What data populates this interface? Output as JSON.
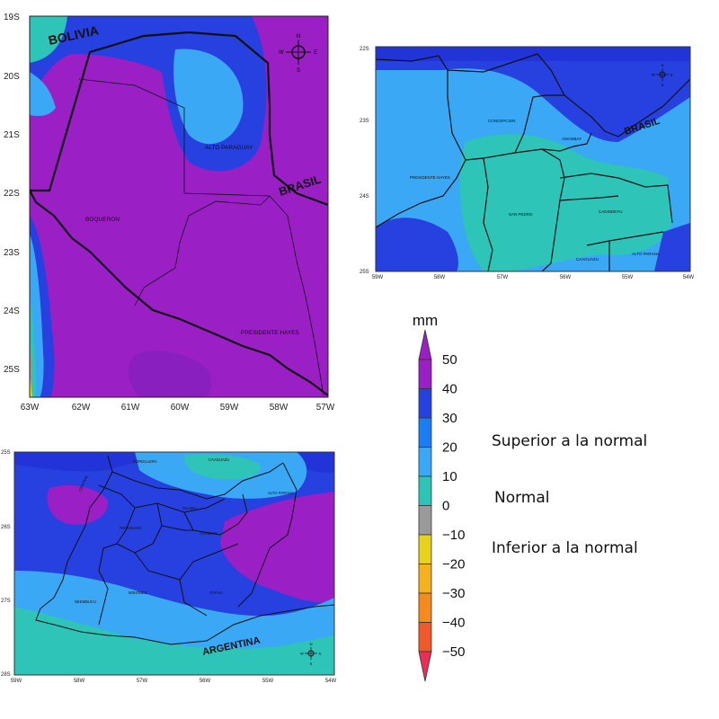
{
  "maps": {
    "west": {
      "lat_labels": [
        "19S",
        "20S",
        "21S",
        "22S",
        "23S",
        "24S",
        "25S"
      ],
      "lon_labels": [
        "63W",
        "62W",
        "61W",
        "60W",
        "59W",
        "58W",
        "57W"
      ],
      "countries": [
        "BOLIVIA",
        "BRASIL"
      ],
      "departments": [
        "ALTO PARAGUAY",
        "BOQUERON",
        "PRESIDENTE HAYES"
      ]
    },
    "north": {
      "lat_labels": [
        "22S",
        "23S",
        "24S",
        "25S"
      ],
      "lon_labels": [
        "59W",
        "58W",
        "57W",
        "56W",
        "55W",
        "54W"
      ],
      "countries": [
        "BRASIL"
      ],
      "departments": [
        "CONCEPCION",
        "AMAMBAY",
        "PRESIDENTE HAYES",
        "SAN PEDRO",
        "CANINDEYU",
        "CAAGUAZU",
        "ALTO PARANA"
      ]
    },
    "south": {
      "lat_labels": [
        "25S",
        "26S",
        "27S",
        "28S"
      ],
      "lon_labels": [
        "59W",
        "58W",
        "57W",
        "56W",
        "55W",
        "54W"
      ],
      "countries": [
        "ARGENTINA"
      ],
      "departments": [
        "CORDILLERA",
        "CAAGUAZU",
        "CENTRAL",
        "GUAIRA",
        "ALTO PARANA",
        "PARAGUARI",
        "CAAZAPA",
        "NEEMBUCU",
        "MISIONES",
        "ITAPUA"
      ]
    },
    "compass": {
      "n": "N",
      "s": "S",
      "e": "E",
      "w": "W"
    }
  },
  "legend": {
    "unit": "mm",
    "ticks": [
      "50",
      "40",
      "30",
      "20",
      "10",
      "0",
      "−10",
      "−20",
      "−30",
      "−40",
      "−50"
    ],
    "colors": [
      "#9a1fc4",
      "#2740e0",
      "#1a7df2",
      "#3aa8f5",
      "#2fc4b8",
      "#9a9a9a",
      "#e8d21e",
      "#f5b21e",
      "#f58a1e",
      "#f05a2a",
      "#ec2d55"
    ],
    "categories": [
      "Superior a la normal",
      "Normal",
      "Inferior a la normal"
    ]
  }
}
